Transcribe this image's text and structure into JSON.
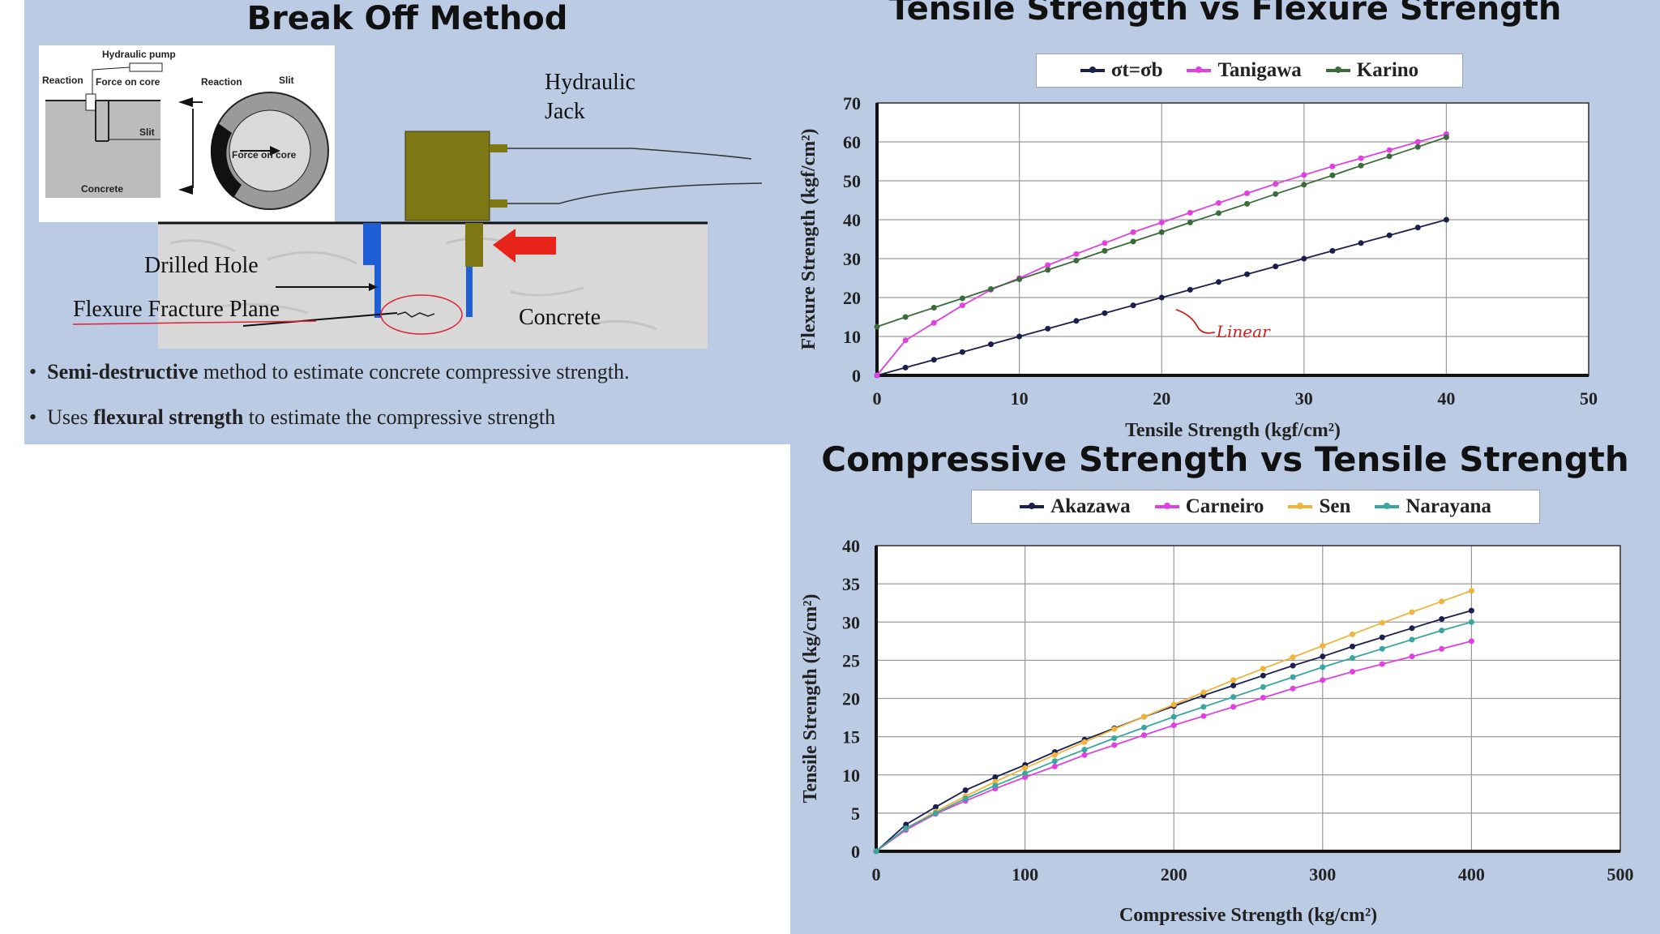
{
  "left_slide": {
    "title": "Break Off Method",
    "inset": {
      "hydraulic_pump": "Hydraulic pump",
      "reaction_left": "Reaction",
      "force_on_core_top": "Force on core",
      "reaction_right": "Reaction",
      "slit_top": "Slit",
      "slit_left": "Slit",
      "concrete": "Concrete",
      "force_on_core_ring": "Force on core"
    },
    "labels": {
      "hydraulic_jack_line1": "Hydraulic",
      "hydraulic_jack_line2": "Jack",
      "drilled_hole": "Drilled Hole",
      "flexure_fracture_plane": "Flexure Fracture Plane",
      "concrete": "Concrete"
    },
    "bullets": [
      {
        "bold": "Semi-destructive",
        "rest": " method to estimate concrete compressive strength."
      },
      {
        "pre": "Uses ",
        "bold": "flexural strength",
        "rest": " to estimate the compressive strength"
      }
    ],
    "colors": {
      "jack": "#7d7714",
      "arrow": "#e8231a",
      "drill": "#1f5fd6",
      "concrete": "#d9d9d9"
    }
  },
  "chart_data": [
    {
      "type": "line",
      "title": "Tensile Strength vs Flexure Strength",
      "xlabel": "Tensile Strength (kgf/cm²)",
      "ylabel": "Flexure Strength (kgf/cm²)",
      "xlim": [
        0,
        50
      ],
      "ylim": [
        0,
        70
      ],
      "xticks": [
        0,
        10,
        20,
        30,
        40,
        50
      ],
      "yticks": [
        0,
        10,
        20,
        30,
        40,
        50,
        60,
        70
      ],
      "grid": true,
      "legend": "top",
      "x": [
        0,
        2,
        4,
        6,
        8,
        10,
        12,
        14,
        16,
        18,
        20,
        22,
        24,
        26,
        28,
        30,
        32,
        34,
        36,
        38,
        40
      ],
      "series": [
        {
          "name": "σt=σb",
          "color": "#1a1f4e",
          "values": [
            0,
            2,
            4,
            6,
            8,
            10,
            12,
            14,
            16,
            18,
            20,
            22,
            24,
            26,
            28,
            30,
            32,
            34,
            36,
            38,
            40
          ]
        },
        {
          "name": "Tanigawa",
          "color": "#e040e0",
          "values": [
            0,
            9,
            13.5,
            18,
            22,
            25,
            28.3,
            31.2,
            34,
            36.8,
            39.3,
            41.8,
            44.3,
            46.8,
            49.2,
            51.5,
            53.7,
            55.8,
            57.9,
            60,
            62
          ]
        },
        {
          "name": "Karino",
          "color": "#3a6b3a",
          "values": [
            12.5,
            15,
            17.4,
            19.8,
            22.2,
            24.7,
            27.1,
            29.5,
            32,
            34.4,
            36.8,
            39.3,
            41.7,
            44.1,
            46.6,
            49,
            51.4,
            53.9,
            56.3,
            58.7,
            61.2
          ]
        }
      ],
      "annotation": "Linear"
    },
    {
      "type": "line",
      "title": "Compressive Strength vs Tensile Strength",
      "xlabel": "Compressive Strength (kg/cm²)",
      "ylabel": "Tensile Strength (kg/cm²)",
      "xlim": [
        0,
        500
      ],
      "ylim": [
        0,
        40
      ],
      "xticks": [
        0,
        100,
        200,
        300,
        400,
        500
      ],
      "yticks": [
        0,
        5,
        10,
        15,
        20,
        25,
        30,
        35,
        40
      ],
      "grid": true,
      "legend": "top",
      "x": [
        0,
        20,
        40,
        60,
        80,
        100,
        120,
        140,
        160,
        180,
        200,
        220,
        240,
        260,
        280,
        300,
        320,
        340,
        360,
        380,
        400
      ],
      "series": [
        {
          "name": "Akazawa",
          "color": "#1a1f4e",
          "values": [
            0,
            3.5,
            5.8,
            8,
            9.7,
            11.3,
            13,
            14.6,
            16.1,
            17.6,
            19,
            20.4,
            21.7,
            23,
            24.3,
            25.5,
            26.8,
            28,
            29.2,
            30.4,
            31.5
          ]
        },
        {
          "name": "Carneiro",
          "color": "#e040e0",
          "values": [
            0,
            2.8,
            4.9,
            6.6,
            8.2,
            9.7,
            11.1,
            12.6,
            13.9,
            15.2,
            16.5,
            17.7,
            18.9,
            20.1,
            21.3,
            22.4,
            23.5,
            24.5,
            25.5,
            26.5,
            27.5
          ]
        },
        {
          "name": "Sen",
          "color": "#f0b43c",
          "values": [
            0,
            3,
            5.2,
            7.2,
            9.1,
            10.9,
            12.6,
            14.3,
            16,
            17.6,
            19.2,
            20.8,
            22.4,
            23.9,
            25.4,
            26.9,
            28.4,
            29.9,
            31.3,
            32.7,
            34.1
          ]
        },
        {
          "name": "Narayana",
          "color": "#3aa6a0",
          "values": [
            0,
            3,
            5,
            6.9,
            8.6,
            10.2,
            11.8,
            13.3,
            14.8,
            16.2,
            17.6,
            18.9,
            20.2,
            21.5,
            22.8,
            24.1,
            25.3,
            26.5,
            27.7,
            28.9,
            30
          ]
        }
      ]
    }
  ]
}
